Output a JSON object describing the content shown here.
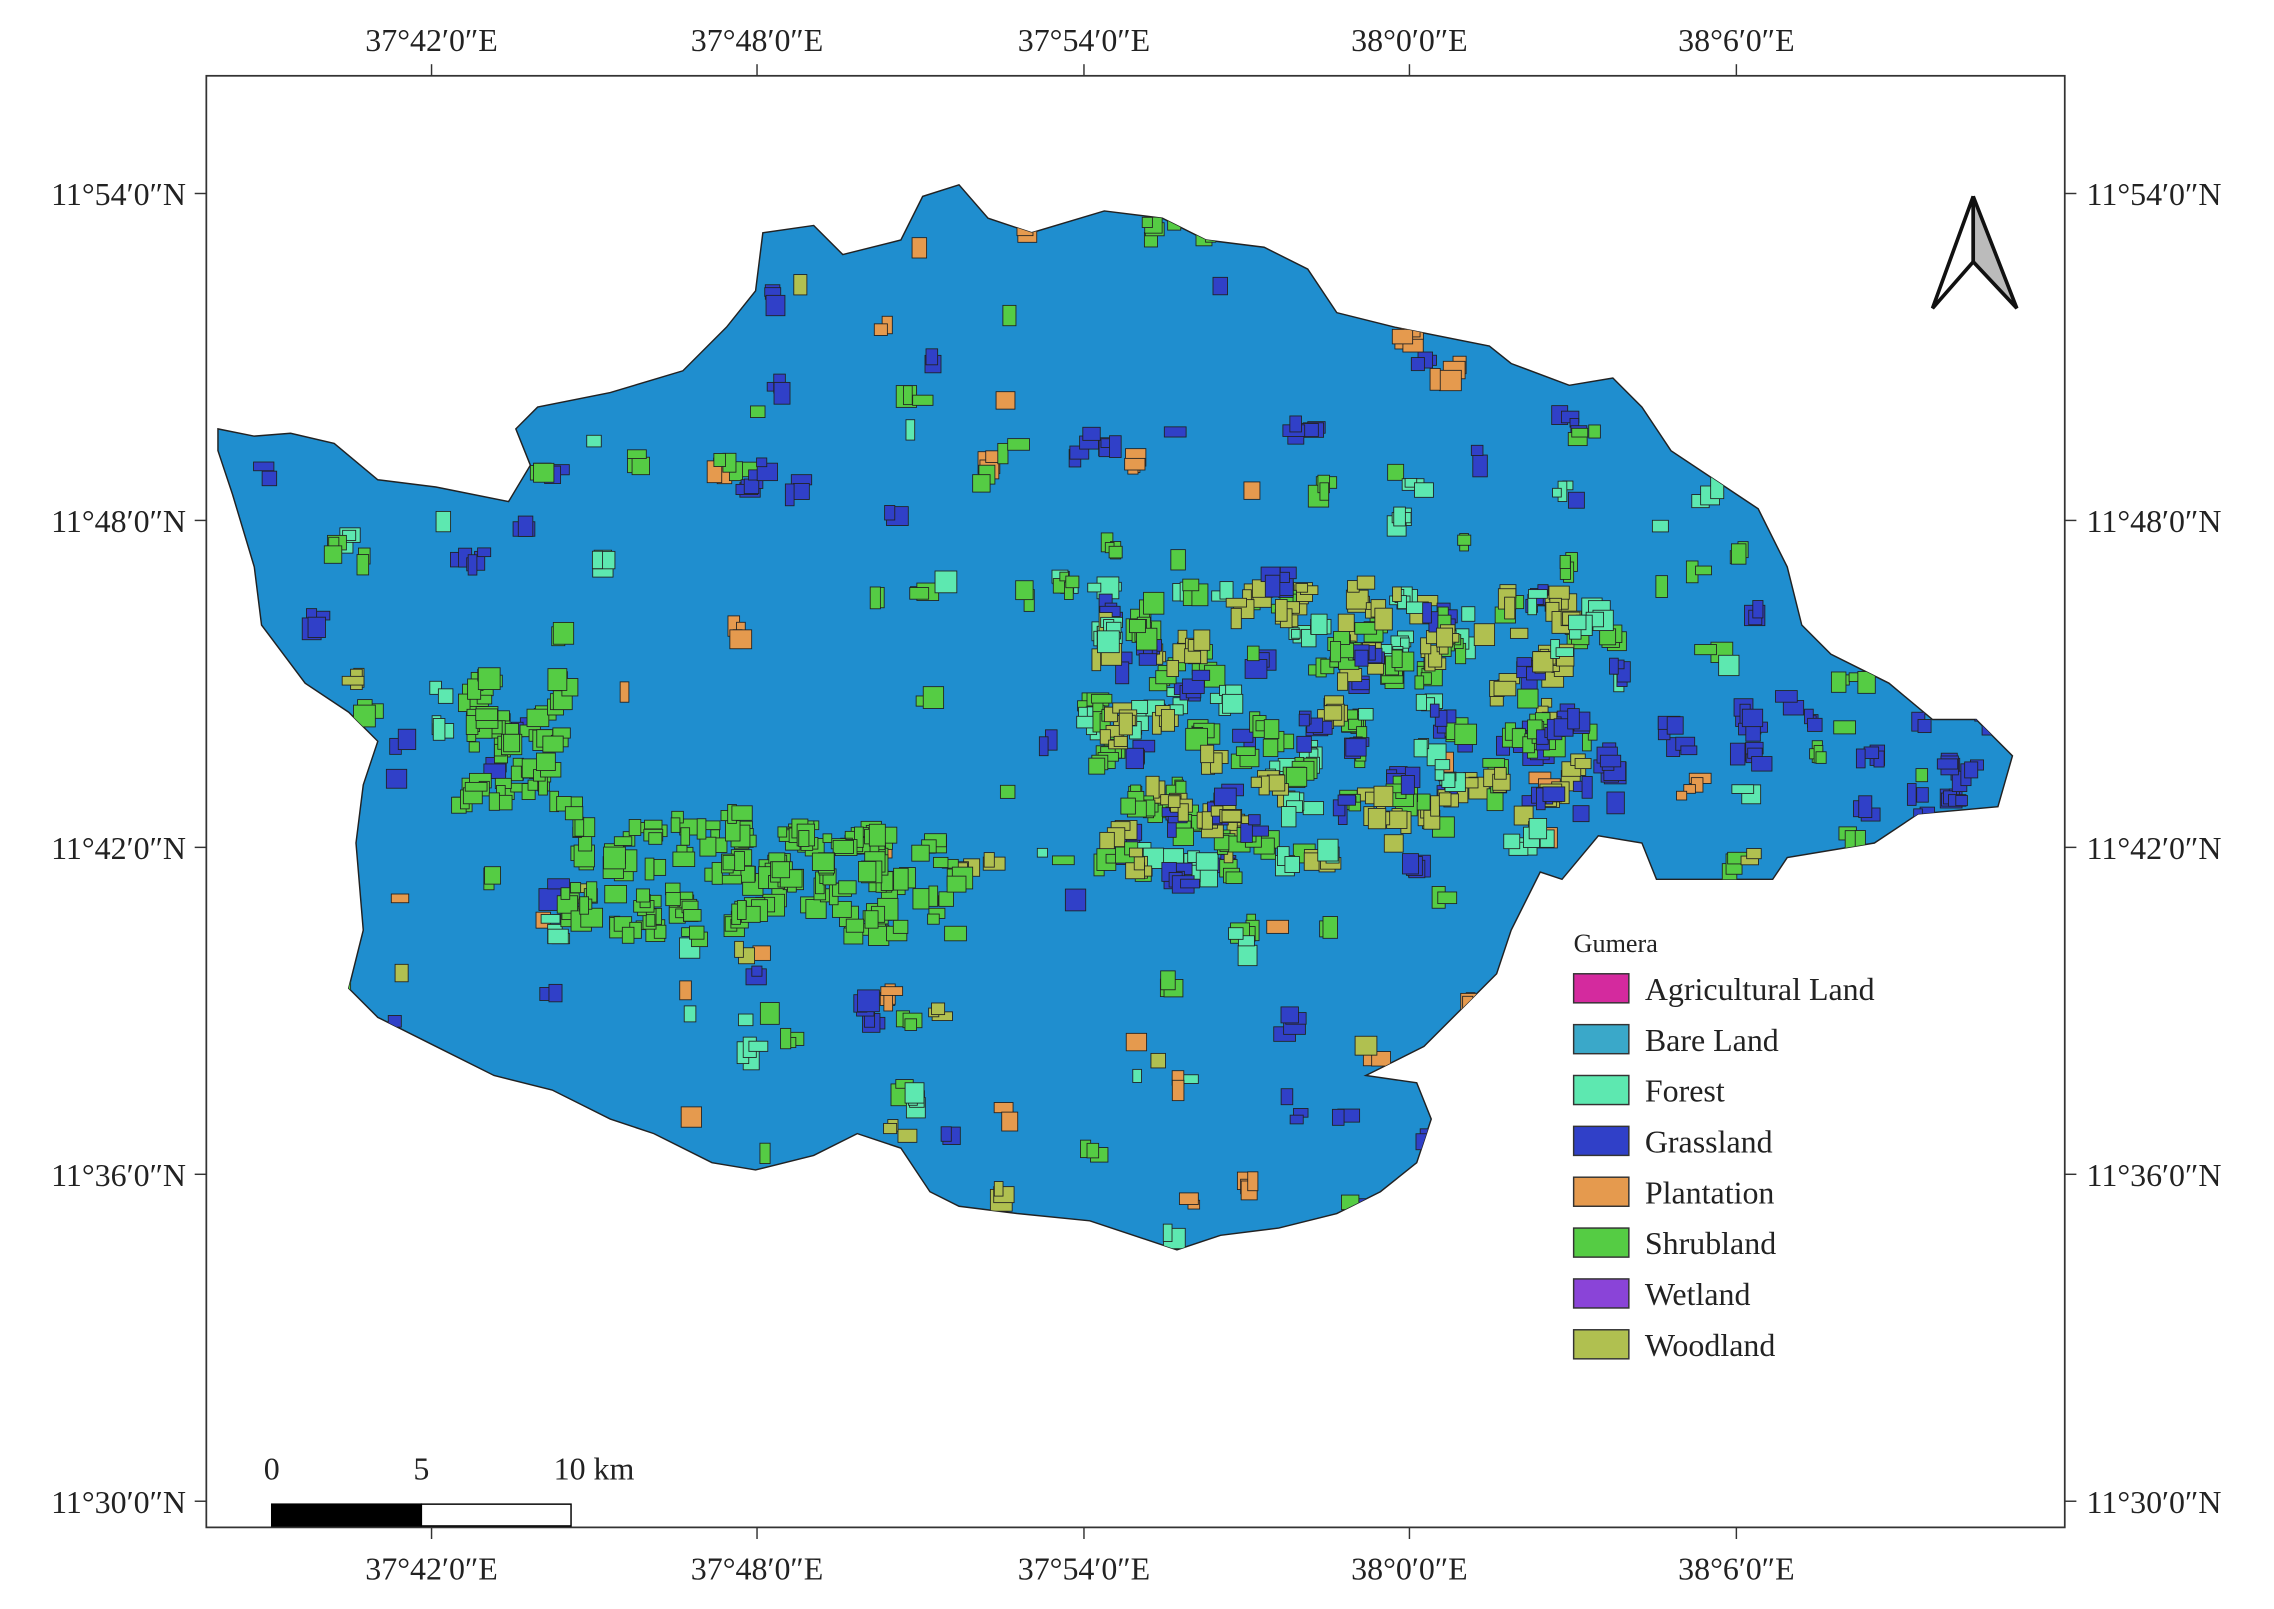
{
  "lon_labels": [
    "37°42′0″E",
    "37°48′0″E",
    "37°54′0″E",
    "38°0′0″E",
    "38°6′0″E"
  ],
  "lat_labels": [
    "11°54′0″N",
    "11°48′0″N",
    "11°42′0″N",
    "11°36′0″N",
    "11°30′0″N"
  ],
  "legend": {
    "title": "Gumera",
    "items": [
      {
        "label": "Agricultural Land",
        "color": "#d42a9e"
      },
      {
        "label": "Bare Land",
        "color": "#3aa8c9"
      },
      {
        "label": "Forest",
        "color": "#5de8b0"
      },
      {
        "label": "Grassland",
        "color": "#3040c8"
      },
      {
        "label": "Plantation",
        "color": "#e59a4e"
      },
      {
        "label": "Shrubland",
        "color": "#55cc44"
      },
      {
        "label": "Wetland",
        "color": "#8a44d8"
      },
      {
        "label": "Woodland",
        "color": "#b0c050"
      }
    ]
  },
  "scale_bar": {
    "labels": [
      "0",
      "5",
      "10 km"
    ]
  }
}
